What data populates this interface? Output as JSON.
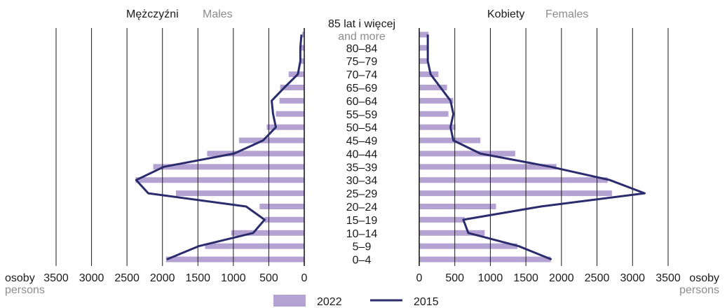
{
  "chart_data": {
    "type": "population-pyramid",
    "age_groups": [
      "0–4",
      "5–9",
      "10–14",
      "15–19",
      "20–24",
      "25–29",
      "30–34",
      "35–39",
      "40–44",
      "45–49",
      "50–54",
      "55–59",
      "60–64",
      "65–69",
      "70–74",
      "75–79",
      "80–84",
      "85 lat i więcej and more"
    ],
    "age_labels": [
      "0–4",
      "5–9",
      "10–14",
      "15–19",
      "20–24",
      "25–29",
      "30–34",
      "35–39",
      "40–44",
      "45–49",
      "50–54",
      "55–59",
      "60–64",
      "65–69",
      "70–74",
      "75–79",
      "80–84",
      "85 lat i więcej"
    ],
    "top_label_second_line": "and more",
    "males": {
      "title_pl": "Mężczyźni",
      "title_en": "Males",
      "xlim": [
        0,
        3500
      ],
      "ticks": [
        "3500",
        "3000",
        "2500",
        "2000",
        "1500",
        "1000",
        "500",
        "0"
      ],
      "series": [
        {
          "name": "2022",
          "values": [
            1950,
            1400,
            1030,
            560,
            630,
            1810,
            2380,
            2130,
            1370,
            920,
            530,
            400,
            350,
            340,
            220,
            60,
            60,
            30
          ]
        },
        {
          "name": "2015",
          "values": [
            1940,
            1490,
            720,
            560,
            820,
            2200,
            2370,
            1980,
            990,
            580,
            400,
            440,
            460,
            280,
            90,
            55,
            55,
            40
          ]
        }
      ]
    },
    "females": {
      "title_pl": "Kobiety",
      "title_en": "Females",
      "xlim": [
        0,
        3500
      ],
      "ticks": [
        "0",
        "500",
        "1000",
        "1500",
        "2000",
        "2500",
        "3000",
        "3500"
      ],
      "series": [
        {
          "name": "2022",
          "values": [
            1850,
            1380,
            920,
            640,
            1080,
            2710,
            2650,
            1930,
            1350,
            860,
            510,
            410,
            480,
            390,
            270,
            130,
            120,
            130
          ]
        },
        {
          "name": "2015",
          "values": [
            1860,
            1400,
            690,
            620,
            1710,
            3170,
            2680,
            1850,
            860,
            480,
            440,
            480,
            440,
            300,
            160,
            120,
            120,
            120
          ]
        }
      ]
    },
    "axis_unit_pl": "osoby",
    "axis_unit_en": "persons",
    "legend": {
      "bar_label": "2022",
      "line_label": "2015",
      "placement": "bottom"
    },
    "colors": {
      "bar": "#b3a2d2",
      "line": "#2b2c6e",
      "grid": "#1a1a1a",
      "text": "#1a1a1a",
      "secondary_text": "#8c8c8c"
    }
  }
}
